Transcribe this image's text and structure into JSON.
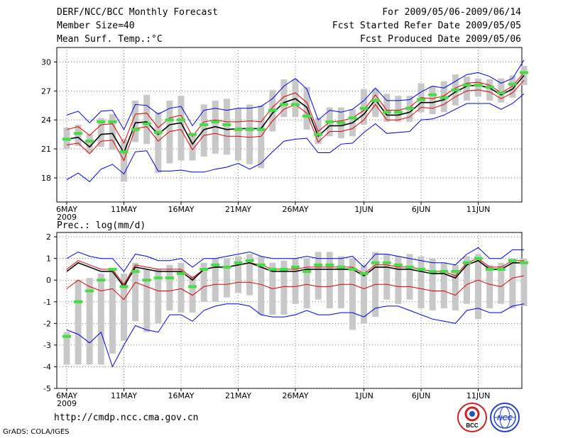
{
  "header": {
    "title": "DERF/NCC/BCC Monthly Forecast",
    "member_size": "Member Size=40",
    "temp_label": "Mean Surf. Temp.:°C",
    "period": "For 2009/05/06-2009/06/14",
    "started": "Fcst Started Refer Date 2009/05/05",
    "produced": "Fcst Produced Date 2009/05/06"
  },
  "prec_label": "Prec.: log(mm/d)",
  "footer": {
    "url": "http://cmdp.ncc.cma.gov.cn",
    "credit": "GrADS: COLA/IGES",
    "logo_left": "BCC",
    "logo_right": "NCC"
  },
  "colors": {
    "upper": "#0000dd",
    "mid": "#dd0000",
    "mean": "#000000",
    "obs": "#44dd44",
    "bar": "#c8c8c8"
  },
  "chart_data": [
    {
      "type": "line",
      "name": "temperature",
      "ylabel": "Mean Surf. Temp.:°C",
      "ylim": [
        15.5,
        31.5
      ],
      "yticks": [
        18,
        21,
        24,
        27,
        30
      ],
      "xticks": [
        {
          "day": 0,
          "label": "6MAY",
          "sub": "2009"
        },
        {
          "day": 5,
          "label": "11MAY"
        },
        {
          "day": 10,
          "label": "16MAY"
        },
        {
          "day": 15,
          "label": "21MAY"
        },
        {
          "day": 20,
          "label": "26MAY"
        },
        {
          "day": 26,
          "label": "1JUN"
        },
        {
          "day": 31,
          "label": "6JUN"
        },
        {
          "day": 36,
          "label": "11JUN"
        }
      ],
      "series": [
        {
          "name": "upper",
          "values": [
            24.5,
            24.9,
            23.7,
            24.9,
            25,
            23,
            25.6,
            25.5,
            24.6,
            25.2,
            25.4,
            23.4,
            25,
            25.2,
            25,
            25.2,
            25.2,
            25.4,
            26.2,
            27.5,
            28.3,
            27.2,
            24,
            25,
            24.8,
            25.1,
            26,
            27.3,
            26,
            26,
            26.1,
            26.9,
            27.5,
            27.3,
            28,
            28.7,
            28.9,
            28.5,
            27.8,
            28.3,
            30.2
          ]
        },
        {
          "name": "upper_red",
          "values": [
            23,
            23.3,
            22.4,
            23.5,
            23.6,
            21.6,
            24.6,
            24.7,
            23.2,
            24.2,
            24.5,
            22.3,
            23.8,
            24,
            23.8,
            23.8,
            23.9,
            23.8,
            25.3,
            26.4,
            26.8,
            25.8,
            22.8,
            23.8,
            23.9,
            24.2,
            25,
            26.6,
            25,
            25,
            25.3,
            26.3,
            26.2,
            26.5,
            27.3,
            27.8,
            27.9,
            27.6,
            26.8,
            27.5,
            28.9
          ]
        },
        {
          "name": "mean",
          "values": [
            22,
            22.2,
            21.2,
            22.5,
            22.6,
            20.6,
            23.7,
            23.8,
            22.5,
            23.5,
            23.7,
            21.5,
            23,
            23.3,
            23,
            23.1,
            23.1,
            23.1,
            24.7,
            25.8,
            26.2,
            25.3,
            22.3,
            23.4,
            23.4,
            23.7,
            24.6,
            26.1,
            24.5,
            24.5,
            24.8,
            25.8,
            25.8,
            26.1,
            26.9,
            27.5,
            27.6,
            27.3,
            26.6,
            27.2,
            28.6
          ]
        },
        {
          "name": "lower_red",
          "values": [
            21.4,
            21.6,
            20.5,
            21.8,
            21.9,
            19.8,
            23.1,
            23.3,
            21.8,
            22.8,
            23,
            20.9,
            22.4,
            22.6,
            22.3,
            22.3,
            22.2,
            22.3,
            23.9,
            25.1,
            25.6,
            24.7,
            21.7,
            22.8,
            22.8,
            23.1,
            24,
            25.6,
            24,
            24,
            24.3,
            25.3,
            25.2,
            25.6,
            26.4,
            27,
            27.1,
            26.9,
            26.2,
            26.8,
            28.1
          ]
        },
        {
          "name": "lower",
          "values": [
            17.8,
            18.5,
            17.6,
            18.9,
            19.4,
            18.4,
            20.7,
            20.8,
            18.7,
            18.7,
            18.8,
            18.6,
            18.6,
            18.9,
            19.1,
            19.5,
            18.9,
            19.5,
            20.7,
            21.8,
            22,
            22.1,
            20.6,
            20.6,
            21.5,
            21.6,
            22.7,
            23.6,
            22.6,
            22.7,
            22.8,
            24,
            24.1,
            24.5,
            25.1,
            25.7,
            25.7,
            25.7,
            25.1,
            25.7,
            26.7
          ]
        },
        {
          "name": "observed",
          "values": [
            22,
            22.6,
            21.8,
            23.8,
            23.8,
            20.7,
            23,
            23.6,
            22.7,
            24,
            24,
            22.5,
            23.5,
            23.8,
            23.5,
            23,
            23,
            23,
            25,
            25.6,
            25.6,
            24.4,
            22.5,
            23.8,
            23.7,
            24.2,
            25.2,
            26,
            24.8,
            24.8,
            25.2,
            26.1,
            26.6,
            26.3,
            27.1,
            27.6,
            27.6,
            27.4,
            26.8,
            27.7,
            28.9
          ]
        }
      ],
      "bars": [
        [
          21,
          23.2
        ],
        [
          21.3,
          23.5
        ],
        [
          20.6,
          22.5
        ],
        [
          21.2,
          24.2
        ],
        [
          20.9,
          24.6
        ],
        [
          17.6,
          22
        ],
        [
          21.7,
          26
        ],
        [
          21.5,
          26.6
        ],
        [
          18.5,
          24.8
        ],
        [
          19.5,
          26
        ],
        [
          19.8,
          26.5
        ],
        [
          19.8,
          22.5
        ],
        [
          20.2,
          25.6
        ],
        [
          20.5,
          26
        ],
        [
          20.4,
          26.2
        ],
        [
          19.8,
          25.2
        ],
        [
          19.4,
          25.6
        ],
        [
          19,
          25.5
        ],
        [
          22.8,
          27.1
        ],
        [
          24.3,
          28.2
        ],
        [
          24.3,
          28.2
        ],
        [
          23,
          27.4
        ],
        [
          21.5,
          24.2
        ],
        [
          22.3,
          25.3
        ],
        [
          22.1,
          25.3
        ],
        [
          22.3,
          25.1
        ],
        [
          23.5,
          27.2
        ],
        [
          24.3,
          27.2
        ],
        [
          23.8,
          26.7
        ],
        [
          23.8,
          26.5
        ],
        [
          23.8,
          26.5
        ],
        [
          24.8,
          27.8
        ],
        [
          24.6,
          27.5
        ],
        [
          24.8,
          28
        ],
        [
          25.5,
          28.7
        ],
        [
          26,
          28.5
        ],
        [
          26.4,
          28.3
        ],
        [
          26,
          28.2
        ],
        [
          25.8,
          28.3
        ],
        [
          26.3,
          28.6
        ],
        [
          27.6,
          29.6
        ]
      ]
    },
    {
      "type": "line",
      "name": "precipitation",
      "ylabel": "Prec.: log(mm/d)",
      "ylim": [
        -5,
        2.2
      ],
      "yticks": [
        -5,
        -4,
        -3,
        -2,
        -1,
        0,
        1,
        2
      ],
      "xticks": [
        {
          "day": 0,
          "label": "6MAY",
          "sub": "2009"
        },
        {
          "day": 5,
          "label": "11MAY"
        },
        {
          "day": 10,
          "label": "16MAY"
        },
        {
          "day": 15,
          "label": "21MAY"
        },
        {
          "day": 20,
          "label": "26MAY"
        },
        {
          "day": 26,
          "label": "1JUN"
        },
        {
          "day": 31,
          "label": "6JUN"
        },
        {
          "day": 36,
          "label": "11JUN"
        }
      ],
      "series": [
        {
          "name": "upper",
          "values": [
            1,
            1.3,
            1.1,
            1,
            1,
            0.4,
            1.2,
            1.1,
            0.9,
            0.9,
            1,
            0.6,
            1,
            1,
            1.1,
            1.2,
            1.3,
            1.1,
            1,
            1,
            1,
            1.1,
            1,
            1,
            1,
            1.1,
            0.6,
            1.2,
            1.2,
            1.1,
            1,
            0.9,
            0.8,
            0.8,
            0.7,
            1.2,
            1.5,
            1,
            1,
            1.4,
            1.4
          ]
        },
        {
          "name": "upper_red",
          "values": [
            0.5,
            0.9,
            0.7,
            0.5,
            0.5,
            -0.2,
            0.7,
            0.6,
            0.5,
            0.5,
            0.5,
            0.1,
            0.5,
            0.6,
            0.6,
            0.7,
            0.8,
            0.7,
            0.5,
            0.5,
            0.5,
            0.6,
            0.6,
            0.6,
            0.6,
            0.6,
            0.3,
            0.7,
            0.7,
            0.6,
            0.6,
            0.5,
            0.4,
            0.4,
            0.2,
            0.8,
            1,
            0.6,
            0.6,
            0.9,
            0.9
          ]
        },
        {
          "name": "mean",
          "values": [
            0.4,
            0.8,
            0.6,
            0.4,
            0.4,
            -0.3,
            0.6,
            0.5,
            0.4,
            0.4,
            0.4,
            0,
            0.5,
            0.6,
            0.6,
            0.7,
            0.8,
            0.6,
            0.4,
            0.4,
            0.4,
            0.5,
            0.5,
            0.5,
            0.5,
            0.5,
            0.2,
            0.6,
            0.6,
            0.5,
            0.5,
            0.4,
            0.3,
            0.3,
            0.1,
            0.7,
            0.9,
            0.5,
            0.5,
            0.8,
            0.8
          ]
        },
        {
          "name": "lower_red",
          "values": [
            -0.4,
            0,
            -0.3,
            -0.5,
            -0.4,
            -0.9,
            -0.1,
            -0.3,
            -0.5,
            -0.5,
            -0.4,
            -0.7,
            -0.3,
            -0.2,
            -0.2,
            -0.1,
            -0.1,
            -0.2,
            -0.4,
            -0.3,
            -0.3,
            -0.2,
            -0.3,
            -0.3,
            -0.2,
            -0.2,
            -0.4,
            -0.2,
            -0.2,
            -0.3,
            -0.3,
            -0.4,
            -0.5,
            -0.5,
            -0.7,
            -0.2,
            0,
            -0.2,
            -0.3,
            0.1,
            0.2
          ]
        },
        {
          "name": "lower",
          "values": [
            -2.3,
            -2.5,
            -2.9,
            -2.4,
            -4,
            -3,
            -2.1,
            -2.3,
            -2.4,
            -1.6,
            -1.6,
            -1.9,
            -1.4,
            -1.2,
            -1.1,
            -1.1,
            -1.2,
            -1.6,
            -1.7,
            -1.7,
            -1.6,
            -1.4,
            -1.6,
            -1.6,
            -1.5,
            -1.5,
            -1.7,
            -1.3,
            -1.2,
            -1.2,
            -1.4,
            -1.6,
            -1.8,
            -1.9,
            -2,
            -1.4,
            -1.3,
            -1.5,
            -1.5,
            -1.2,
            -1.1
          ]
        },
        {
          "name": "observed",
          "values": [
            -2.6,
            -1,
            -0.5,
            0,
            0.5,
            -0.3,
            0.4,
            0,
            0.1,
            0.1,
            0.3,
            -0.3,
            0.5,
            0.7,
            0.6,
            0.8,
            0.9,
            0.7,
            0.5,
            0.5,
            0.6,
            0.4,
            0.7,
            0.7,
            0.6,
            0.5,
            0.3,
            0.8,
            0.8,
            0.7,
            0.6,
            0.5,
            0.4,
            0.4,
            0.4,
            0.8,
            1,
            0.5,
            0.5,
            0.9,
            0.8
          ]
        }
      ],
      "bars": [
        [
          -3.9,
          -2.4
        ],
        [
          -3.9,
          0
        ],
        [
          -3.9,
          0.1
        ],
        [
          -3.9,
          0.3
        ],
        [
          -3.4,
          0.4
        ],
        [
          -2.8,
          0.3
        ],
        [
          -1.9,
          0.8
        ],
        [
          -2.4,
          0.5
        ],
        [
          -2,
          0.5
        ],
        [
          -1.4,
          0.7
        ],
        [
          -1.5,
          0.8
        ],
        [
          -1.5,
          0.2
        ],
        [
          -1,
          0.8
        ],
        [
          -1,
          1
        ],
        [
          -0.8,
          1
        ],
        [
          -0.6,
          1.1
        ],
        [
          -0.7,
          1.2
        ],
        [
          -1.6,
          1.1
        ],
        [
          -1.6,
          0.8
        ],
        [
          -1.6,
          0.9
        ],
        [
          -1.1,
          1
        ],
        [
          -1.3,
          1
        ],
        [
          -0.9,
          1.3
        ],
        [
          -1.3,
          1.3
        ],
        [
          -1.3,
          1.1
        ],
        [
          -2.3,
          1
        ],
        [
          -2,
          0.7
        ],
        [
          -1.7,
          1.3
        ],
        [
          -0.9,
          1.2
        ],
        [
          -1.1,
          1.1
        ],
        [
          -0.9,
          1.2
        ],
        [
          -1.3,
          1.1
        ],
        [
          -1.4,
          1
        ],
        [
          -1.3,
          0.8
        ],
        [
          -1.4,
          0.7
        ],
        [
          -1.1,
          1.1
        ],
        [
          -1.8,
          1.2
        ],
        [
          -1.3,
          0.7
        ],
        [
          -1.1,
          0.8
        ],
        [
          -1.3,
          1
        ],
        [
          -1.2,
          1
        ]
      ]
    }
  ]
}
